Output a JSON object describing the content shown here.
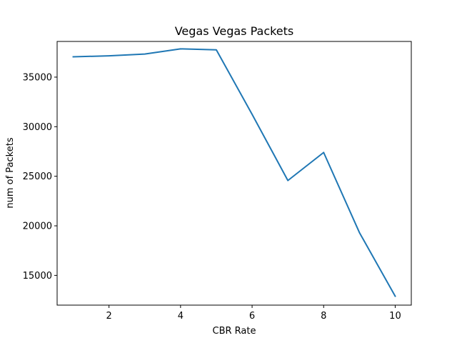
{
  "chart_data": {
    "type": "line",
    "title": "Vegas Vegas Packets",
    "xlabel": "CBR Rate",
    "ylabel": "num of Packets",
    "xlim": [
      0.55,
      10.45
    ],
    "ylim": [
      12000,
      38600
    ],
    "xticks": [
      2,
      4,
      6,
      8,
      10
    ],
    "xtick_labels": [
      "2",
      "4",
      "6",
      "8",
      "10"
    ],
    "yticks": [
      15000,
      20000,
      25000,
      30000,
      35000
    ],
    "ytick_labels": [
      "15000",
      "20000",
      "25000",
      "30000",
      "35000"
    ],
    "grid": false,
    "series": [
      {
        "color": "#1f77b4",
        "x": [
          1,
          2,
          3,
          4,
          5,
          6,
          7,
          8,
          9,
          10
        ],
        "y": [
          37050,
          37150,
          37330,
          37850,
          37750,
          31250,
          24570,
          27400,
          19320,
          12900
        ]
      }
    ]
  }
}
